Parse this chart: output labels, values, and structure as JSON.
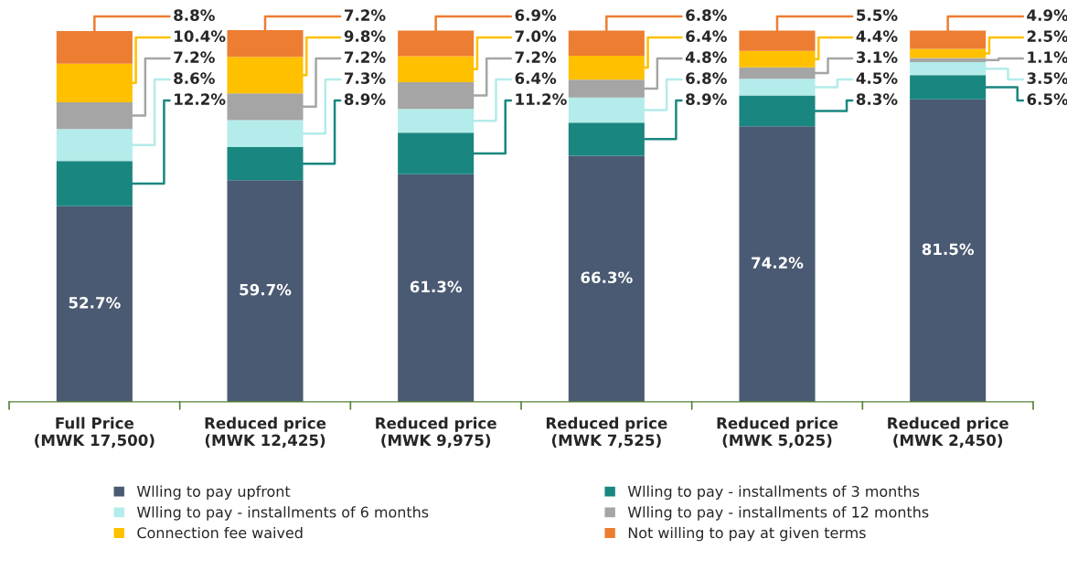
{
  "chart_data": {
    "type": "bar",
    "stacked": true,
    "legend": "bottom",
    "grid": false,
    "categories": [
      "Full Price\n(MWK 17,500)",
      "Reduced price\n(MWK 12,425)",
      "Reduced price\n(MWK 9,975)",
      "Reduced price\n(MWK 7,525)",
      "Reduced price\n(MWK 5,025)",
      "Reduced price\n(MWK 2,450)"
    ],
    "series": [
      {
        "name": "Wlling to pay upfront",
        "color": "#4a5a72",
        "values": [
          52.7,
          59.7,
          61.3,
          66.3,
          74.2,
          81.5
        ],
        "value_labels": [
          "52.7%",
          "59.7%",
          "61.3%",
          "66.3%",
          "74.2%",
          "81.5%"
        ]
      },
      {
        "name": "Wlling to pay - installments of 3 months",
        "color": "#198780",
        "values": [
          12.2,
          8.9,
          11.2,
          8.9,
          8.3,
          6.5
        ],
        "value_labels": [
          "12.2%",
          "8.9%",
          "11.2%",
          "8.9%",
          "8.3%",
          "6.5%"
        ]
      },
      {
        "name": "Wlling to pay - installments of 6 months",
        "color": "#b3ecea",
        "values": [
          8.6,
          7.3,
          6.4,
          6.8,
          4.5,
          3.5
        ],
        "value_labels": [
          "8.6%",
          "7.3%",
          "6.4%",
          "6.8%",
          "4.5%",
          "3.5%"
        ]
      },
      {
        "name": "Wlling to pay - installments of 12 months",
        "color": "#a5a5a5",
        "values": [
          7.2,
          7.2,
          7.2,
          4.8,
          3.1,
          1.1
        ],
        "value_labels": [
          "7.2%",
          "7.2%",
          "7.2%",
          "4.8%",
          "3.1%",
          "1.1%"
        ]
      },
      {
        "name": "Connection fee waived",
        "color": "#ffc000",
        "values": [
          10.4,
          9.8,
          7.0,
          6.4,
          4.4,
          2.5
        ],
        "value_labels": [
          "10.4%",
          "9.8%",
          "7.0%",
          "6.4%",
          "4.4%",
          "2.5%"
        ]
      },
      {
        "name": "Not willing to pay at given terms",
        "color": "#ed7d31",
        "values": [
          8.8,
          7.2,
          6.9,
          6.8,
          5.5,
          4.9
        ],
        "value_labels": [
          "8.8%",
          "7.2%",
          "6.9%",
          "6.8%",
          "5.5%",
          "4.9%"
        ]
      }
    ]
  }
}
